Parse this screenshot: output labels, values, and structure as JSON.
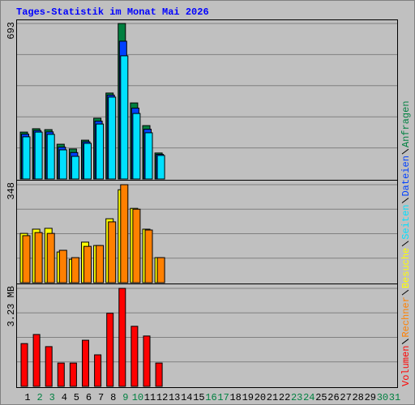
{
  "title": "Tages-Statistik im Monat Mai 2026",
  "chart_data": [
    {
      "type": "bar",
      "ylim": [
        0,
        693
      ],
      "yticks": [
        693
      ],
      "series": [
        {
          "name": "Anfragen",
          "color": "#008040",
          "values": [
            209,
            224,
            220,
            155,
            134,
            173,
            271,
            383,
            693,
            339,
            238,
            116,
            null,
            null,
            null,
            null,
            null,
            null,
            null,
            null,
            null,
            null,
            null,
            null,
            null,
            null,
            null,
            null,
            null,
            null,
            null
          ]
        },
        {
          "name": "Dateien",
          "color": "#0040ff",
          "values": [
            200,
            216,
            210,
            142,
            118,
            166,
            258,
            374,
            614,
            316,
            222,
            110,
            null,
            null,
            null,
            null,
            null,
            null,
            null,
            null,
            null,
            null,
            null,
            null,
            null,
            null,
            null,
            null,
            null,
            null,
            null
          ]
        },
        {
          "name": "Seiten",
          "color": "#00e0ff",
          "values": [
            188,
            209,
            199,
            130,
            101,
            159,
            245,
            365,
            549,
            292,
            206,
            105,
            null,
            null,
            null,
            null,
            null,
            null,
            null,
            null,
            null,
            null,
            null,
            null,
            null,
            null,
            null,
            null,
            null,
            null,
            null
          ]
        }
      ]
    },
    {
      "type": "bar",
      "ylim": [
        0,
        348
      ],
      "yticks": [
        348
      ],
      "series": [
        {
          "name": "Besuche",
          "color": "#ffff00",
          "values": [
            175,
            190,
            193,
            109,
            83,
            144,
            132,
            227,
            330,
            264,
            190,
            89,
            null,
            null,
            null,
            null,
            null,
            null,
            null,
            null,
            null,
            null,
            null,
            null,
            null,
            null,
            null,
            null,
            null,
            null,
            null
          ]
        },
        {
          "name": "Rechner",
          "color": "#ff8000",
          "values": [
            167,
            178,
            175,
            115,
            89,
            129,
            132,
            216,
            348,
            261,
            187,
            89,
            null,
            null,
            null,
            null,
            null,
            null,
            null,
            null,
            null,
            null,
            null,
            null,
            null,
            null,
            null,
            null,
            null,
            null,
            null
          ]
        }
      ]
    },
    {
      "type": "bar",
      "ylim": [
        0,
        3.23
      ],
      "yticks": [
        {
          "value": 3.23,
          "label": "3.23 MB"
        }
      ],
      "categories": [
        "1",
        "2",
        "3",
        "4",
        "5",
        "6",
        "7",
        "8",
        "9",
        "10",
        "11",
        "12",
        "13",
        "14",
        "15",
        "16",
        "17",
        "18",
        "19",
        "20",
        "21",
        "22",
        "23",
        "24",
        "25",
        "26",
        "27",
        "28",
        "29",
        "30",
        "31"
      ],
      "highlight_categories": [
        "2",
        "3",
        "9",
        "10",
        "16",
        "17",
        "23",
        "24",
        "30",
        "31"
      ],
      "highlight_color": "#008040",
      "series": [
        {
          "name": "Volumen",
          "color": "#ff0000",
          "values": [
            1.41,
            1.71,
            1.31,
            0.77,
            0.77,
            1.52,
            1.04,
            2.41,
            3.23,
            1.98,
            1.66,
            0.77,
            null,
            null,
            null,
            null,
            null,
            null,
            null,
            null,
            null,
            null,
            null,
            null,
            null,
            null,
            null,
            null,
            null,
            null,
            null
          ]
        }
      ]
    }
  ]
}
